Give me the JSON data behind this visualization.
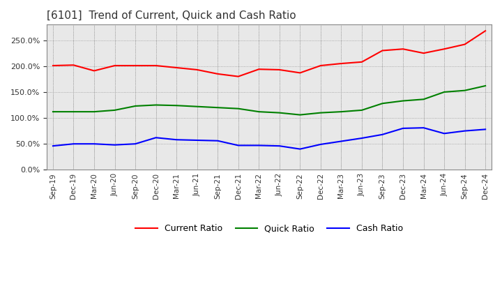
{
  "title": "[6101]  Trend of Current, Quick and Cash Ratio",
  "title_fontsize": 11,
  "background_color": "#ffffff",
  "plot_bg_color": "#e8e8e8",
  "grid_color": "#999999",
  "labels": [
    "Sep-19",
    "Dec-19",
    "Mar-20",
    "Jun-20",
    "Sep-20",
    "Dec-20",
    "Mar-21",
    "Jun-21",
    "Sep-21",
    "Dec-21",
    "Mar-22",
    "Jun-22",
    "Sep-22",
    "Dec-22",
    "Mar-23",
    "Jun-23",
    "Sep-23",
    "Dec-23",
    "Mar-24",
    "Jun-24",
    "Sep-24",
    "Dec-24"
  ],
  "current_ratio": [
    2.01,
    2.02,
    1.91,
    2.01,
    2.01,
    2.01,
    1.97,
    1.93,
    1.85,
    1.8,
    1.94,
    1.93,
    1.87,
    2.01,
    2.05,
    2.08,
    2.3,
    2.33,
    2.25,
    2.33,
    2.42,
    2.68
  ],
  "quick_ratio": [
    1.12,
    1.12,
    1.12,
    1.15,
    1.23,
    1.25,
    1.24,
    1.22,
    1.2,
    1.18,
    1.12,
    1.1,
    1.06,
    1.1,
    1.12,
    1.15,
    1.28,
    1.33,
    1.36,
    1.5,
    1.53,
    1.62
  ],
  "cash_ratio": [
    0.46,
    0.5,
    0.5,
    0.48,
    0.5,
    0.62,
    0.58,
    0.57,
    0.56,
    0.47,
    0.47,
    0.46,
    0.4,
    0.49,
    0.55,
    0.61,
    0.68,
    0.8,
    0.81,
    0.7,
    0.75,
    0.78
  ],
  "current_color": "#ff0000",
  "quick_color": "#008000",
  "cash_color": "#0000ff",
  "line_width": 1.5,
  "legend_labels": [
    "Current Ratio",
    "Quick Ratio",
    "Cash Ratio"
  ]
}
